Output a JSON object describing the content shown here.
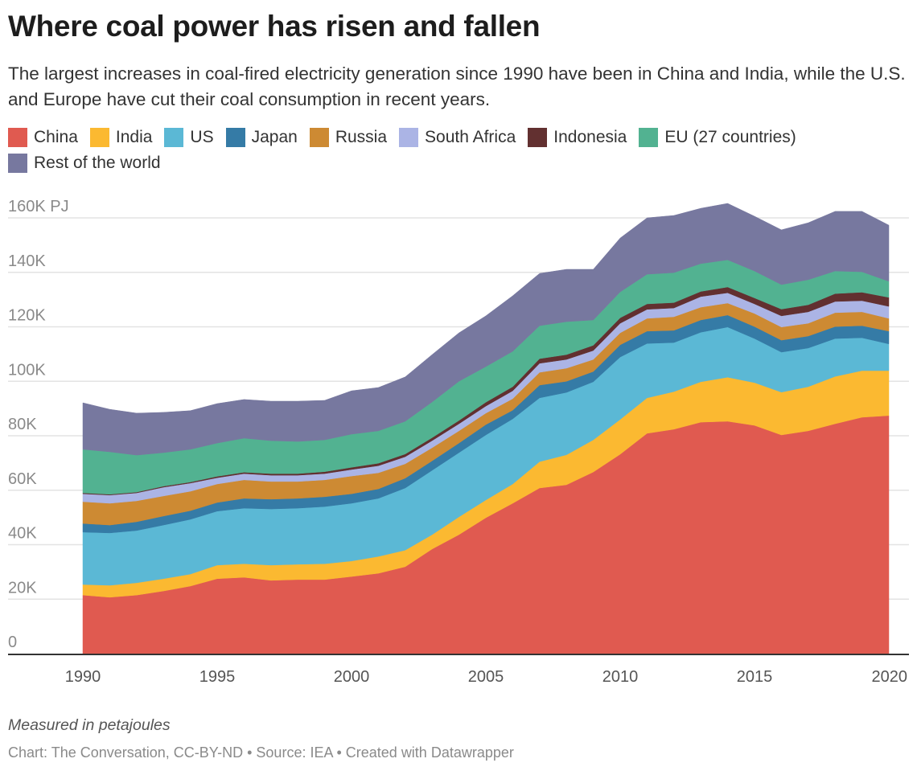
{
  "title": "Where coal power has risen and fallen",
  "subtitle": "The largest increases in coal-fired electricity generation since 1990 have been in China and India, while the U.S. and Europe have cut their coal consumption in recent years.",
  "note": "Measured in petajoules",
  "credits": "Chart: The Conversation, CC-BY-ND • Source: IEA • Created with Datawrapper",
  "chart_data": {
    "type": "area",
    "stacked": true,
    "x": [
      1990,
      1991,
      1992,
      1993,
      1994,
      1995,
      1996,
      1997,
      1998,
      1999,
      2000,
      2001,
      2002,
      2003,
      2004,
      2005,
      2006,
      2007,
      2008,
      2009,
      2010,
      2011,
      2012,
      2013,
      2014,
      2015,
      2016,
      2017,
      2018,
      2019,
      2020
    ],
    "unit": "thousand PJ",
    "ylim": [
      0,
      160
    ],
    "yticks": [
      0,
      20,
      40,
      60,
      80,
      100,
      120,
      140,
      160
    ],
    "ytick_labels": [
      "0",
      "20K",
      "40K",
      "60K",
      "80K",
      "100K",
      "120K",
      "140K",
      "160K PJ"
    ],
    "xticks": [
      1990,
      1995,
      2000,
      2005,
      2010,
      2015,
      2020
    ],
    "xtick_labels": [
      "1990",
      "1995",
      "2000",
      "2005",
      "2010",
      "2015",
      "2020"
    ],
    "grid": true,
    "legend_position": "top",
    "series": [
      {
        "name": "China",
        "color": "#e05a50",
        "values": [
          21.5,
          20.7,
          21.5,
          23.0,
          24.8,
          27.5,
          28.0,
          26.9,
          27.2,
          27.2,
          28.3,
          29.5,
          31.9,
          38.4,
          43.7,
          49.9,
          55.2,
          60.8,
          62.0,
          66.7,
          73.2,
          80.9,
          82.4,
          85.0,
          85.3,
          83.8,
          80.3,
          81.8,
          84.4,
          86.8,
          87.4
        ]
      },
      {
        "name": "India",
        "color": "#fbb931",
        "values": [
          3.9,
          4.4,
          4.5,
          4.5,
          4.4,
          5.0,
          5.0,
          5.6,
          5.6,
          5.8,
          5.7,
          6.2,
          6.1,
          5.3,
          6.5,
          6.5,
          7.1,
          9.7,
          11.0,
          11.8,
          12.8,
          13.0,
          13.8,
          14.8,
          16.2,
          15.7,
          15.7,
          16.2,
          17.4,
          17.1,
          16.5
        ]
      },
      {
        "name": "US",
        "color": "#5bb8d5",
        "values": [
          19.2,
          19.2,
          19.2,
          19.7,
          20.1,
          19.8,
          20.4,
          20.6,
          20.6,
          21.0,
          21.2,
          21.3,
          22.8,
          23.6,
          23.6,
          23.9,
          23.9,
          23.4,
          22.9,
          21.3,
          22.9,
          20.0,
          18.0,
          18.2,
          18.4,
          16.2,
          14.7,
          14.2,
          13.9,
          12.1,
          9.8
        ]
      },
      {
        "name": "Japan",
        "color": "#357ba6",
        "values": [
          3.2,
          2.9,
          3.2,
          3.3,
          3.2,
          3.2,
          3.6,
          3.6,
          3.6,
          3.6,
          3.5,
          3.5,
          3.6,
          3.5,
          3.5,
          3.8,
          3.2,
          4.7,
          4.1,
          3.8,
          4.5,
          4.5,
          4.5,
          4.5,
          4.4,
          4.4,
          4.4,
          4.4,
          4.4,
          4.4,
          4.7
        ]
      },
      {
        "name": "Russia",
        "color": "#cd8a33",
        "values": [
          8.0,
          8.0,
          7.7,
          7.4,
          7.1,
          6.8,
          6.8,
          6.5,
          6.2,
          6.2,
          6.5,
          5.9,
          5.3,
          4.8,
          4.5,
          4.2,
          4.2,
          4.7,
          4.8,
          4.4,
          4.4,
          4.7,
          5.0,
          4.7,
          4.4,
          4.8,
          4.8,
          4.7,
          5.1,
          5.1,
          4.7
        ]
      },
      {
        "name": "South Africa",
        "color": "#abb4e5",
        "values": [
          2.9,
          3.0,
          2.9,
          3.2,
          3.0,
          2.3,
          2.3,
          2.3,
          2.3,
          2.3,
          2.4,
          2.6,
          2.6,
          2.6,
          2.6,
          2.6,
          2.9,
          3.3,
          3.2,
          3.3,
          3.5,
          3.3,
          3.2,
          3.9,
          3.8,
          3.5,
          4.1,
          4.2,
          4.1,
          4.1,
          4.4
        ]
      },
      {
        "name": "Indonesia",
        "color": "#623030",
        "values": [
          0.3,
          0.3,
          0.3,
          0.4,
          0.4,
          0.5,
          0.5,
          0.6,
          0.6,
          0.7,
          0.8,
          0.9,
          1.0,
          1.1,
          1.2,
          1.4,
          1.5,
          1.7,
          1.8,
          1.9,
          2.0,
          2.0,
          2.0,
          1.9,
          2.1,
          2.2,
          2.5,
          2.6,
          2.9,
          3.1,
          3.3
        ]
      },
      {
        "name": "EU (27 countries)",
        "color": "#52b291",
        "values": [
          16.0,
          15.6,
          13.6,
          12.3,
          12.0,
          12.2,
          12.5,
          12.1,
          11.8,
          11.7,
          12.2,
          11.9,
          12.0,
          13.1,
          14.4,
          13.1,
          13.0,
          12.1,
          12.1,
          9.3,
          9.5,
          10.9,
          11.0,
          10.2,
          10.0,
          9.9,
          9.0,
          9.2,
          8.3,
          7.5,
          5.9
        ]
      },
      {
        "name": "Rest of the world",
        "color": "#77789f",
        "values": [
          17.1,
          15.6,
          15.4,
          14.8,
          14.2,
          14.5,
          14.2,
          14.5,
          14.8,
          14.5,
          15.9,
          15.9,
          16.3,
          17.4,
          17.8,
          18.6,
          20.4,
          19.2,
          19.2,
          18.6,
          19.8,
          20.7,
          21.0,
          20.3,
          20.7,
          20.1,
          20.1,
          20.9,
          21.9,
          22.2,
          20.6
        ]
      }
    ]
  }
}
